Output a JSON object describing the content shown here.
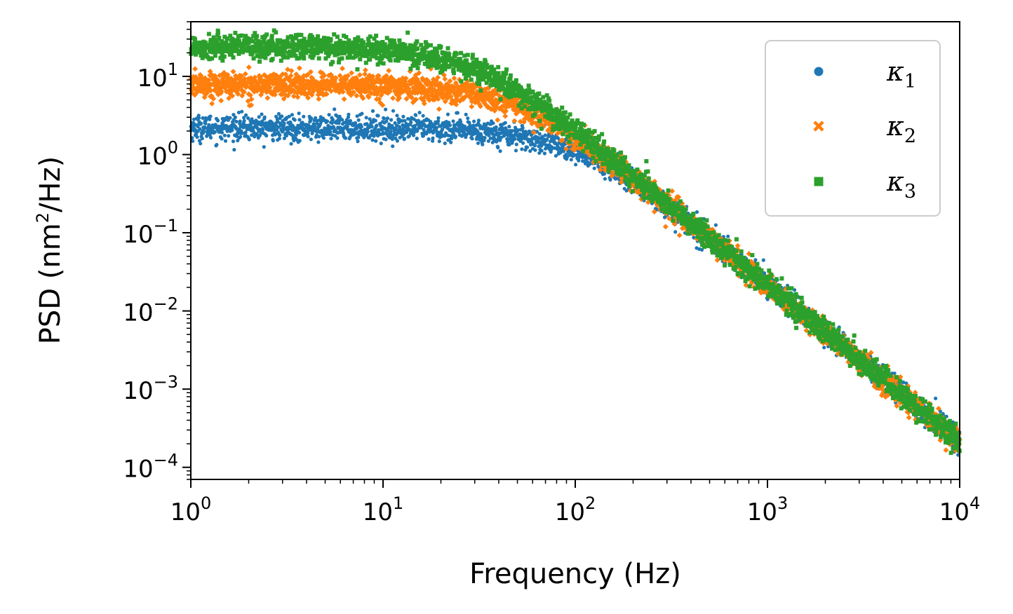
{
  "chart_data": {
    "type": "scatter",
    "title": "",
    "xlabel": "Frequency (Hz)",
    "ylabel_main": "PSD (nm",
    "ylabel_sup": "2",
    "ylabel_tail": "/Hz)",
    "xscale": "log",
    "yscale": "log",
    "xlim": [
      1,
      10000
    ],
    "ylim": [
      7e-05,
      50
    ],
    "x_ticks": [
      {
        "base": "10",
        "exp": "0"
      },
      {
        "base": "10",
        "exp": "1"
      },
      {
        "base": "10",
        "exp": "2"
      },
      {
        "base": "10",
        "exp": "3"
      },
      {
        "base": "10",
        "exp": "4"
      }
    ],
    "y_ticks": [
      {
        "base": "10",
        "exp": "−4"
      },
      {
        "base": "10",
        "exp": "−3"
      },
      {
        "base": "10",
        "exp": "−2"
      },
      {
        "base": "10",
        "exp": "−1"
      },
      {
        "base": "10",
        "exp": "0"
      },
      {
        "base": "10",
        "exp": "1"
      }
    ],
    "x_tick_values": [
      1,
      10,
      100,
      1000,
      10000
    ],
    "y_tick_values": [
      0.0001,
      0.001,
      0.01,
      0.1,
      1,
      10
    ],
    "grid": false,
    "legend_position": "top-right",
    "series": [
      {
        "name": "κ",
        "sub": "1",
        "marker": "circle",
        "color": "#1f77b4",
        "plateau": 2.2,
        "corner_hz": 100,
        "noise": 0.08
      },
      {
        "name": "κ",
        "sub": "2",
        "marker": "x",
        "color": "#ff7f0e",
        "plateau": 7.8,
        "corner_hz": 52,
        "noise": 0.08
      },
      {
        "name": "κ",
        "sub": "3",
        "marker": "square",
        "color": "#2ca02c",
        "plateau": 24,
        "corner_hz": 30,
        "noise": 0.08
      }
    ]
  }
}
